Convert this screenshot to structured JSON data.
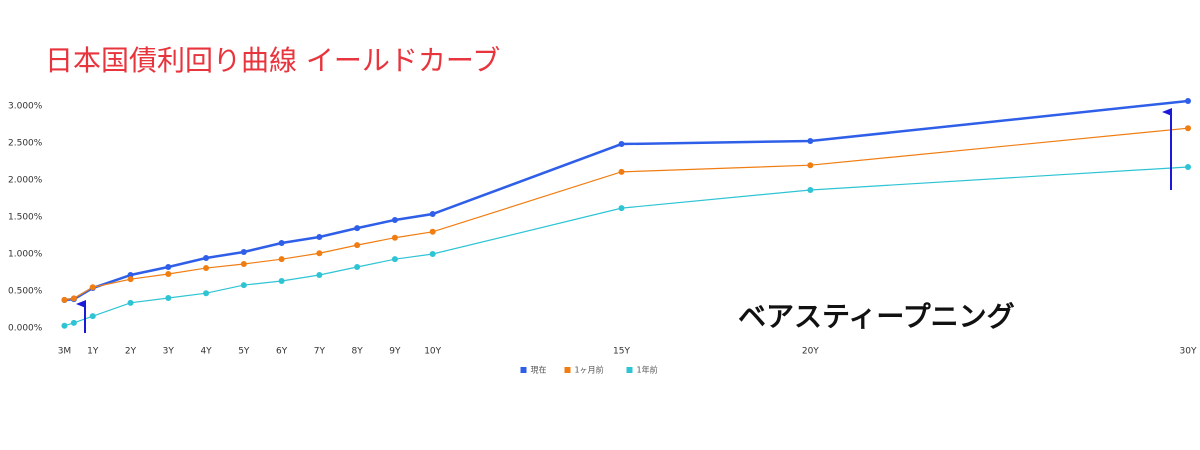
{
  "chart_data": {
    "type": "line",
    "title": "日本国債利回り曲線 イールドカーブ",
    "annotation": "ベアスティープニング",
    "x": [
      0.25,
      0.5,
      1,
      2,
      3,
      4,
      5,
      6,
      7,
      8,
      9,
      10,
      15,
      20,
      30
    ],
    "series": [
      {
        "name": "現在",
        "color": "#2f5fe8",
        "values": [
          0.378,
          0.39,
          0.54,
          0.716,
          0.824,
          0.946,
          1.027,
          1.149,
          1.23,
          1.35,
          1.46,
          1.54,
          2.486,
          2.527,
          3.068
        ]
      },
      {
        "name": "1ヶ月前",
        "color": "#f07d12",
        "values": [
          0.38,
          0.4,
          0.55,
          0.66,
          0.73,
          0.81,
          0.865,
          0.93,
          1.01,
          1.12,
          1.22,
          1.3,
          2.11,
          2.2,
          2.7
        ]
      },
      {
        "name": "1年前",
        "color": "#2ec4d4",
        "values": [
          0.03,
          0.07,
          0.16,
          0.34,
          0.405,
          0.47,
          0.58,
          0.635,
          0.716,
          0.824,
          0.93,
          1.0,
          1.62,
          1.865,
          2.176
        ]
      }
    ],
    "xlim": [
      0,
      30
    ],
    "xticks": [
      {
        "value": 0.25,
        "label": "3M"
      },
      {
        "value": 1,
        "label": "1Y"
      },
      {
        "value": 2,
        "label": "2Y"
      },
      {
        "value": 3,
        "label": "3Y"
      },
      {
        "value": 4,
        "label": "4Y"
      },
      {
        "value": 5,
        "label": "5Y"
      },
      {
        "value": 6,
        "label": "6Y"
      },
      {
        "value": 7,
        "label": "7Y"
      },
      {
        "value": 8,
        "label": "8Y"
      },
      {
        "value": 9,
        "label": "9Y"
      },
      {
        "value": 10,
        "label": "10Y"
      },
      {
        "value": 15,
        "label": "15Y"
      },
      {
        "value": 20,
        "label": "20Y"
      },
      {
        "value": 30,
        "label": "30Y"
      }
    ],
    "ylim": [
      0,
      3
    ],
    "yticks": [
      {
        "value": 0,
        "label": "0.000%"
      },
      {
        "value": 0.5,
        "label": "0.500%"
      },
      {
        "value": 1,
        "label": "1.000%"
      },
      {
        "value": 1.5,
        "label": "1.500%"
      },
      {
        "value": 2,
        "label": "2.000%"
      },
      {
        "value": 2.5,
        "label": "2.500%"
      },
      {
        "value": 3,
        "label": "3.000%"
      }
    ],
    "legend": "bottom"
  }
}
